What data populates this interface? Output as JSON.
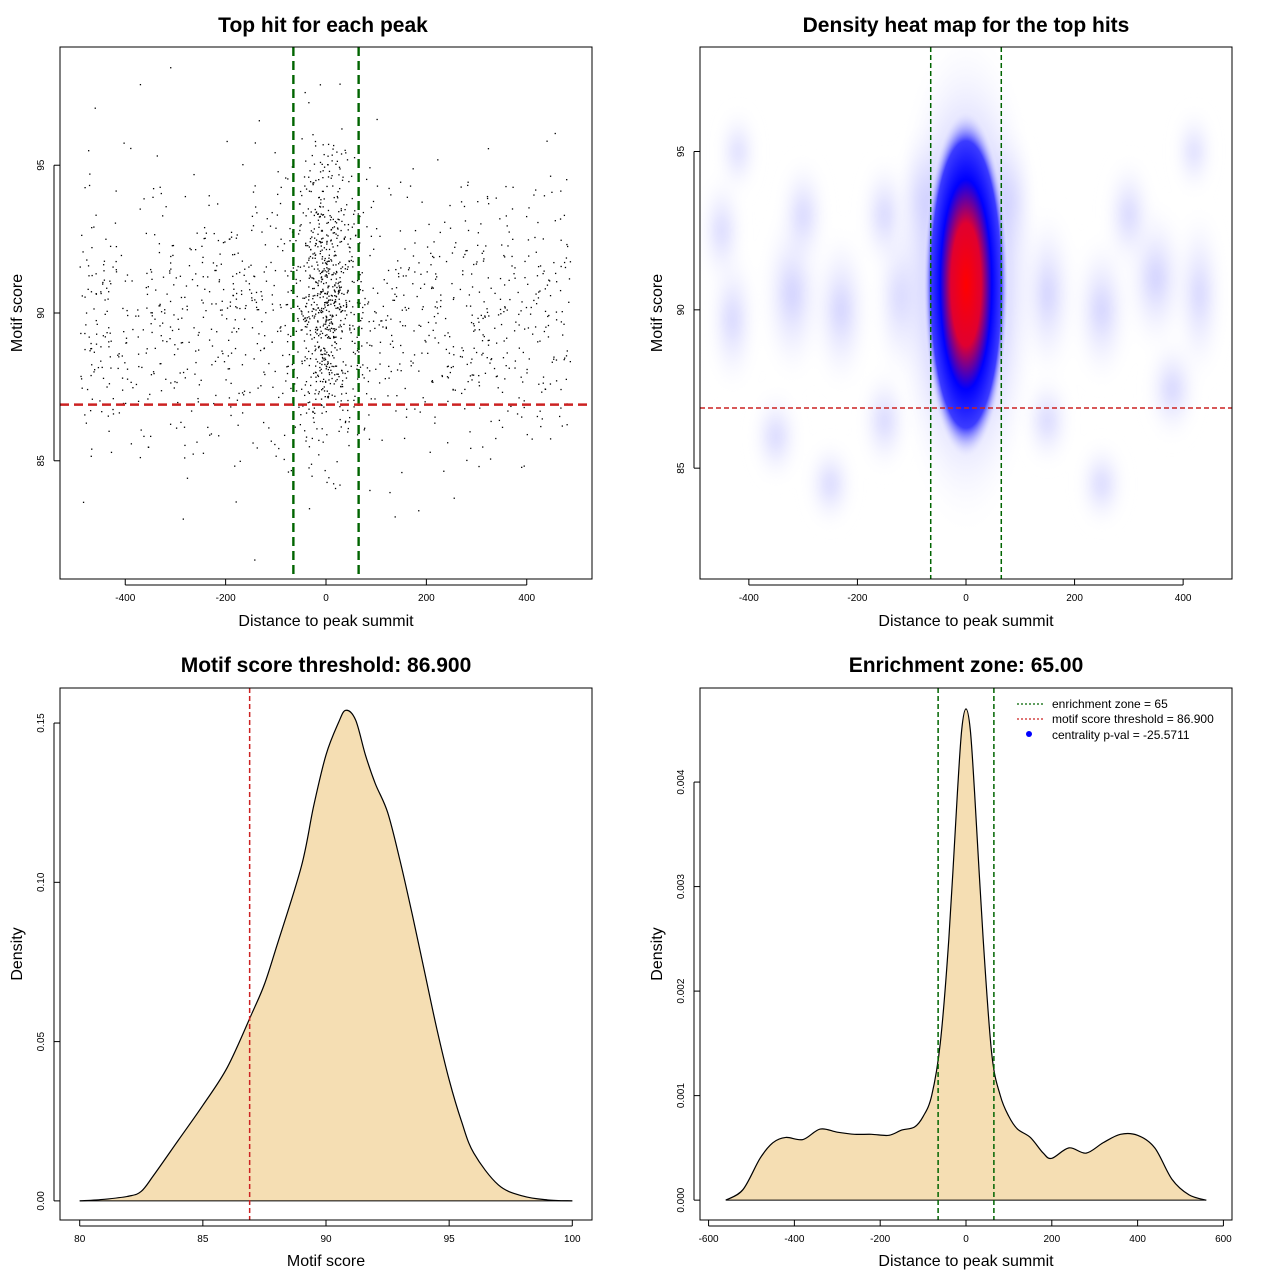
{
  "chart_data": [
    {
      "type": "scatter",
      "title": "Top hit for each peak",
      "xlabel": "Distance to peak summit",
      "ylabel": "Motif score",
      "xlim": [
        -530,
        530
      ],
      "ylim": [
        81,
        99
      ],
      "xticks": [
        -400,
        -200,
        0,
        200,
        400
      ],
      "yticks": [
        85,
        90,
        95
      ],
      "grid": false,
      "vlines": [
        {
          "x": -65,
          "color": "#006400"
        },
        {
          "x": 65,
          "color": "#006400"
        }
      ],
      "hlines": [
        {
          "y": 86.9,
          "color": "#cc2222"
        }
      ],
      "point_summary": {
        "count": 1800,
        "x_range": [
          -490,
          490
        ],
        "y_range": [
          81.5,
          98.3
        ],
        "center_concentration": "dense between -65 and 65"
      }
    },
    {
      "type": "heatmap",
      "title": "Density heat map for the top hits",
      "xlabel": "Distance to peak summit",
      "ylabel": "Motif score",
      "xlim": [
        -490,
        490
      ],
      "ylim": [
        81.5,
        98.3
      ],
      "xticks": [
        -400,
        -200,
        0,
        200,
        400
      ],
      "yticks": [
        85,
        90,
        95
      ],
      "grid": false,
      "color_scale": [
        "#ffffff",
        "#b4b4ff",
        "#0000ff",
        "#ff0000"
      ],
      "density_peak": {
        "x": 0,
        "y": 90.8
      },
      "vlines": [
        {
          "x": -65,
          "color": "#006400"
        },
        {
          "x": 65,
          "color": "#006400"
        }
      ],
      "hlines": [
        {
          "y": 86.9,
          "color": "#cc2222"
        }
      ]
    },
    {
      "type": "area",
      "title": "Motif score threshold: 86.900",
      "xlabel": "Motif score",
      "ylabel": "Density",
      "xlim": [
        79.2,
        100.8
      ],
      "ylim": [
        -0.006,
        0.161
      ],
      "xticks": [
        80,
        85,
        90,
        95,
        100
      ],
      "yticks": [
        0.0,
        0.05,
        0.1,
        0.15
      ],
      "ytick_labels": [
        "0.00",
        "0.05",
        "0.10",
        "0.15"
      ],
      "fill_color": "#f5deb3",
      "x": [
        80,
        81,
        82,
        82.5,
        83,
        84,
        85,
        86,
        87,
        87.5,
        88,
        89,
        89.5,
        90,
        90.5,
        90.8,
        91.2,
        91.6,
        92,
        92.5,
        93,
        93.5,
        94,
        94.5,
        95,
        95.5,
        96,
        97,
        98,
        99,
        100
      ],
      "y": [
        0.0,
        0.0005,
        0.0015,
        0.003,
        0.008,
        0.019,
        0.03,
        0.042,
        0.059,
        0.068,
        0.08,
        0.105,
        0.124,
        0.14,
        0.15,
        0.154,
        0.151,
        0.14,
        0.131,
        0.122,
        0.107,
        0.09,
        0.072,
        0.054,
        0.038,
        0.025,
        0.015,
        0.005,
        0.0015,
        0.0003,
        0.0
      ],
      "vlines": [
        {
          "x": 86.9,
          "color": "#cc2222"
        }
      ]
    },
    {
      "type": "area",
      "title": "Enrichment zone: 65.00",
      "xlabel": "Distance to peak summit",
      "ylabel": "Density",
      "xlim": [
        -620,
        620
      ],
      "ylim": [
        -0.00019,
        0.0049
      ],
      "xticks": [
        -600,
        -400,
        -200,
        0,
        200,
        400,
        600
      ],
      "yticks": [
        0,
        0.001,
        0.002,
        0.003,
        0.004
      ],
      "ytick_labels": [
        "0.000",
        "0.001",
        "0.002",
        "0.003",
        "0.004"
      ],
      "fill_color": "#f5deb3",
      "x": [
        -560,
        -520,
        -480,
        -450,
        -420,
        -380,
        -340,
        -300,
        -260,
        -220,
        -180,
        -150,
        -120,
        -100,
        -80,
        -60,
        -40,
        -20,
        -10,
        0,
        10,
        20,
        40,
        60,
        80,
        100,
        120,
        150,
        180,
        200,
        240,
        280,
        320,
        360,
        400,
        440,
        480,
        520,
        560
      ],
      "y": [
        0.0,
        0.0001,
        0.0004,
        0.00055,
        0.0006,
        0.00058,
        0.00068,
        0.00065,
        0.00063,
        0.00063,
        0.00062,
        0.00067,
        0.0007,
        0.0008,
        0.001,
        0.0015,
        0.0025,
        0.0039,
        0.0045,
        0.0047,
        0.0045,
        0.0039,
        0.0025,
        0.0014,
        0.001,
        0.0008,
        0.00068,
        0.0006,
        0.00045,
        0.0004,
        0.0005,
        0.00045,
        0.00055,
        0.00063,
        0.00062,
        0.0005,
        0.0002,
        5e-05,
        0.0
      ],
      "vlines": [
        {
          "x": -65,
          "color": "#006400"
        },
        {
          "x": 65,
          "color": "#006400"
        }
      ],
      "legend": {
        "placement": "top-right",
        "entries": [
          {
            "label": "enrichment zone = 65",
            "color": "#006400",
            "style": "dotted-line"
          },
          {
            "label": "motif score threshold = 86.900",
            "color": "#cc2222",
            "style": "dotted-line"
          },
          {
            "label": "centrality p-val = -25.5711",
            "color": "#0000ff",
            "style": "point"
          }
        ]
      }
    }
  ]
}
